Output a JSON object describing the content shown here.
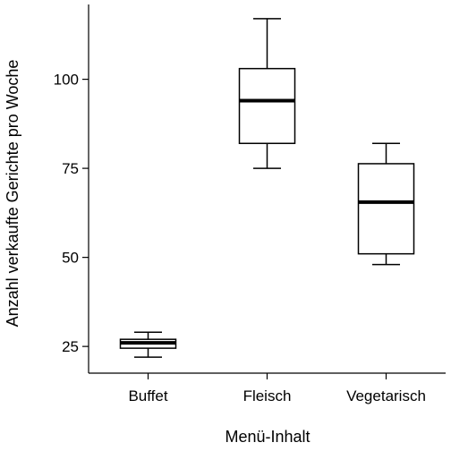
{
  "chart_data": {
    "type": "boxplot",
    "title": "",
    "xlabel": "Menü-Inhalt",
    "ylabel": "Anzahl verkaufte Gerichte pro Woche",
    "categories": [
      "Buffet",
      "Fleisch",
      "Vegetarisch"
    ],
    "yticks": [
      25,
      50,
      75,
      100
    ],
    "ylim": [
      17.5,
      121
    ],
    "grid": false,
    "legend": "none",
    "boxes": [
      {
        "category": "Buffet",
        "whisker_low": 22,
        "q1": 24.5,
        "median": 26,
        "q3": 27,
        "whisker_high": 29
      },
      {
        "category": "Fleisch",
        "whisker_low": 75,
        "q1": 82,
        "median": 94,
        "q3": 103,
        "whisker_high": 117
      },
      {
        "category": "Vegetarisch",
        "whisker_low": 48,
        "q1": 51,
        "median": 65.5,
        "q3": 76.3,
        "whisker_high": 82
      }
    ]
  }
}
